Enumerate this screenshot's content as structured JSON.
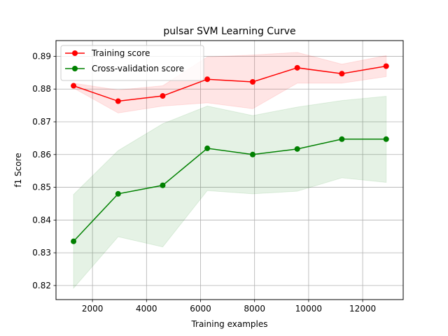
{
  "chart_data": {
    "type": "line",
    "title": "pulsar SVM Learning Curve",
    "xlabel": "Training examples",
    "ylabel": "f1 Score",
    "xlim": [
      650,
      13500
    ],
    "ylim": [
      0.8157,
      0.8948
    ],
    "xticks": [
      2000,
      4000,
      6000,
      8000,
      10000,
      12000
    ],
    "xtick_labels": [
      "2000",
      "4000",
      "6000",
      "8000",
      "10000",
      "12000"
    ],
    "yticks": [
      0.82,
      0.83,
      0.84,
      0.85,
      0.86,
      0.87,
      0.88,
      0.89
    ],
    "ytick_labels": [
      "0.82",
      "0.83",
      "0.84",
      "0.85",
      "0.86",
      "0.87",
      "0.88",
      "0.89"
    ],
    "grid": true,
    "legend_position": "top-left",
    "x": [
      1300,
      2950,
      4600,
      6250,
      7930,
      9580,
      11230,
      12870
    ],
    "series": [
      {
        "name": "Training score",
        "color": "#ff0000",
        "band_color": "#ff0000",
        "values": [
          0.881,
          0.8763,
          0.8779,
          0.883,
          0.8822,
          0.8865,
          0.8847,
          0.887
        ],
        "band_lower": [
          0.8803,
          0.8727,
          0.8748,
          0.8758,
          0.874,
          0.8818,
          0.8818,
          0.8838
        ],
        "band_upper": [
          0.8818,
          0.8797,
          0.881,
          0.8898,
          0.8904,
          0.8912,
          0.8876,
          0.8902
        ]
      },
      {
        "name": "Cross-validation score",
        "color": "#008000",
        "band_color": "#008000",
        "values": [
          0.8335,
          0.848,
          0.8506,
          0.8619,
          0.86,
          0.8617,
          0.8647,
          0.8647
        ],
        "band_lower": [
          0.8192,
          0.8349,
          0.8318,
          0.849,
          0.848,
          0.8488,
          0.8529,
          0.8515
        ],
        "band_upper": [
          0.8478,
          0.8612,
          0.8694,
          0.8748,
          0.8719,
          0.8745,
          0.8765,
          0.8778
        ]
      }
    ]
  }
}
